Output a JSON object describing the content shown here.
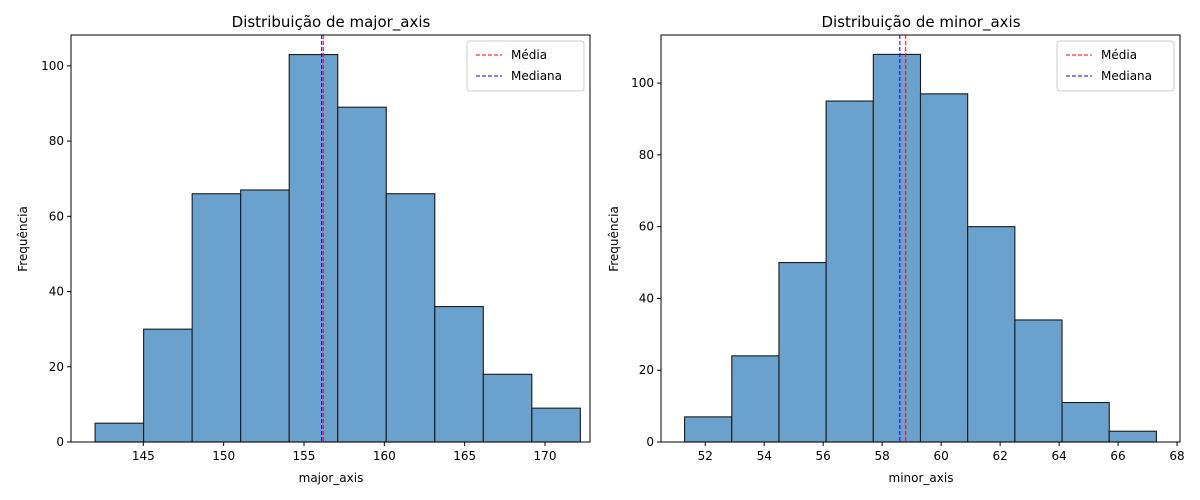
{
  "chart_data": [
    {
      "type": "histogram",
      "title": "Distribuição de major_axis",
      "xlabel": "major_axis",
      "ylabel": "Frequência",
      "xlim": [
        140.5,
        172.8
      ],
      "ylim": [
        0,
        108.2
      ],
      "xticks": [
        145,
        150,
        155,
        160,
        165,
        170
      ],
      "yticks": [
        0,
        20,
        40,
        60,
        80,
        100
      ],
      "bins": [
        {
          "start": 142.0,
          "end": 145.02,
          "count": 5
        },
        {
          "start": 145.02,
          "end": 148.04,
          "count": 30
        },
        {
          "start": 148.04,
          "end": 151.06,
          "count": 66
        },
        {
          "start": 151.06,
          "end": 154.08,
          "count": 67
        },
        {
          "start": 154.08,
          "end": 157.1,
          "count": 103
        },
        {
          "start": 157.1,
          "end": 160.12,
          "count": 89
        },
        {
          "start": 160.12,
          "end": 163.14,
          "count": 66
        },
        {
          "start": 163.14,
          "end": 166.16,
          "count": 36
        },
        {
          "start": 166.16,
          "end": 169.18,
          "count": 18
        },
        {
          "start": 169.18,
          "end": 172.2,
          "count": 9
        }
      ],
      "mean": 156.2,
      "median": 156.1,
      "legend": {
        "position": "top-right",
        "entries": [
          "Média",
          "Mediana"
        ]
      },
      "colors": {
        "bar": "#6aa1cd",
        "bar_edge": "#1a1a1a",
        "mean": "#ff0000",
        "median": "#0000ff"
      }
    },
    {
      "type": "histogram",
      "title": "Distribuição de minor_axis",
      "xlabel": "minor_axis",
      "ylabel": "Frequência",
      "xlim": [
        50.5,
        68.1
      ],
      "ylim": [
        0,
        113.4
      ],
      "xticks": [
        52,
        54,
        56,
        58,
        60,
        62,
        64,
        66,
        68
      ],
      "yticks": [
        0,
        20,
        40,
        60,
        80,
        100
      ],
      "bins": [
        {
          "start": 51.3,
          "end": 52.9,
          "count": 7
        },
        {
          "start": 52.9,
          "end": 54.5,
          "count": 24
        },
        {
          "start": 54.5,
          "end": 56.1,
          "count": 50
        },
        {
          "start": 56.1,
          "end": 57.7,
          "count": 95
        },
        {
          "start": 57.7,
          "end": 59.3,
          "count": 108
        },
        {
          "start": 59.3,
          "end": 60.9,
          "count": 97
        },
        {
          "start": 60.9,
          "end": 62.5,
          "count": 60
        },
        {
          "start": 62.5,
          "end": 64.1,
          "count": 34
        },
        {
          "start": 64.1,
          "end": 65.7,
          "count": 11
        },
        {
          "start": 65.7,
          "end": 67.3,
          "count": 3
        }
      ],
      "mean": 58.8,
      "median": 58.6,
      "legend": {
        "position": "top-right",
        "entries": [
          "Média",
          "Mediana"
        ]
      },
      "colors": {
        "bar": "#6aa1cd",
        "bar_edge": "#1a1a1a",
        "mean": "#ff0000",
        "median": "#0000ff"
      }
    }
  ]
}
